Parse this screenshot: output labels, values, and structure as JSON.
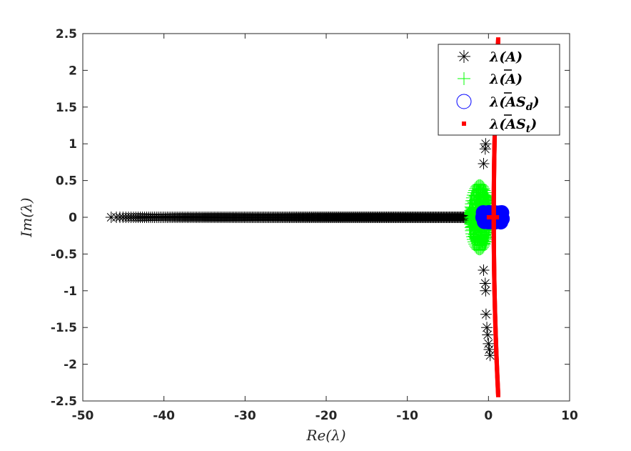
{
  "chart_data": {
    "type": "scatter",
    "xlabel": "Re(λ)",
    "ylabel": "Im(λ)",
    "xlim": [
      -50,
      10
    ],
    "ylim": [
      -2.5,
      2.5
    ],
    "x_ticks": [
      "-50",
      "-40",
      "-30",
      "-20",
      "-10",
      "0",
      "10"
    ],
    "y_ticks": [
      "2.5",
      "2",
      "1.5",
      "1",
      "0.5",
      "0",
      "-0.5",
      "-1",
      "-1.5",
      "-2",
      "-2.5"
    ],
    "grid": false,
    "legend_position": "top-right",
    "series": [
      {
        "name": "λ(A)",
        "marker": "asterisk",
        "color": "#000000",
        "real_axis_x_range": [
          -46.5,
          -0.5
        ],
        "points": [
          [
            -0.6,
            0.73
          ],
          [
            -0.4,
            0.93
          ],
          [
            -0.35,
            1.0
          ],
          [
            -0.6,
            -0.72
          ],
          [
            -0.4,
            -0.9
          ],
          [
            -0.35,
            -1.0
          ],
          [
            -0.3,
            -1.32
          ],
          [
            -0.2,
            -1.5
          ],
          [
            -0.1,
            -1.6
          ],
          [
            0.0,
            -1.72
          ],
          [
            0.1,
            -1.8
          ],
          [
            0.2,
            -1.88
          ]
        ]
      },
      {
        "name": "λ(Ā)",
        "marker": "plus",
        "color": "#00ff00",
        "shape": {
          "center": [
            -1.1,
            0
          ],
          "half_width": 1.3,
          "half_height": 0.45
        }
      },
      {
        "name": "λ(ĀS_d)",
        "marker": "circle",
        "color": "#0000ff",
        "shape": {
          "center": [
            0.5,
            0
          ],
          "half_width": 1.2,
          "half_height": 0.08
        }
      },
      {
        "name": "λ(ĀS_t)",
        "marker": "square",
        "color": "#ff0000",
        "line": {
          "x_at_top": 1.2,
          "x_at_zero": 0.65,
          "x_at_bottom": 1.2,
          "y_top": 2.42,
          "y_bottom": -2.42
        }
      }
    ]
  },
  "legend": {
    "items": [
      {
        "pre": "λ(",
        "main": "A",
        "bar": false,
        "sub": "",
        "post": ")"
      },
      {
        "pre": "λ(",
        "main": "A",
        "bar": true,
        "sub": "",
        "post": ")"
      },
      {
        "pre": "λ(",
        "main": "AS",
        "bar": true,
        "sub": "d",
        "post": ")"
      },
      {
        "pre": "λ(",
        "main": "AS",
        "bar": true,
        "sub": "t",
        "post": ")"
      }
    ]
  }
}
